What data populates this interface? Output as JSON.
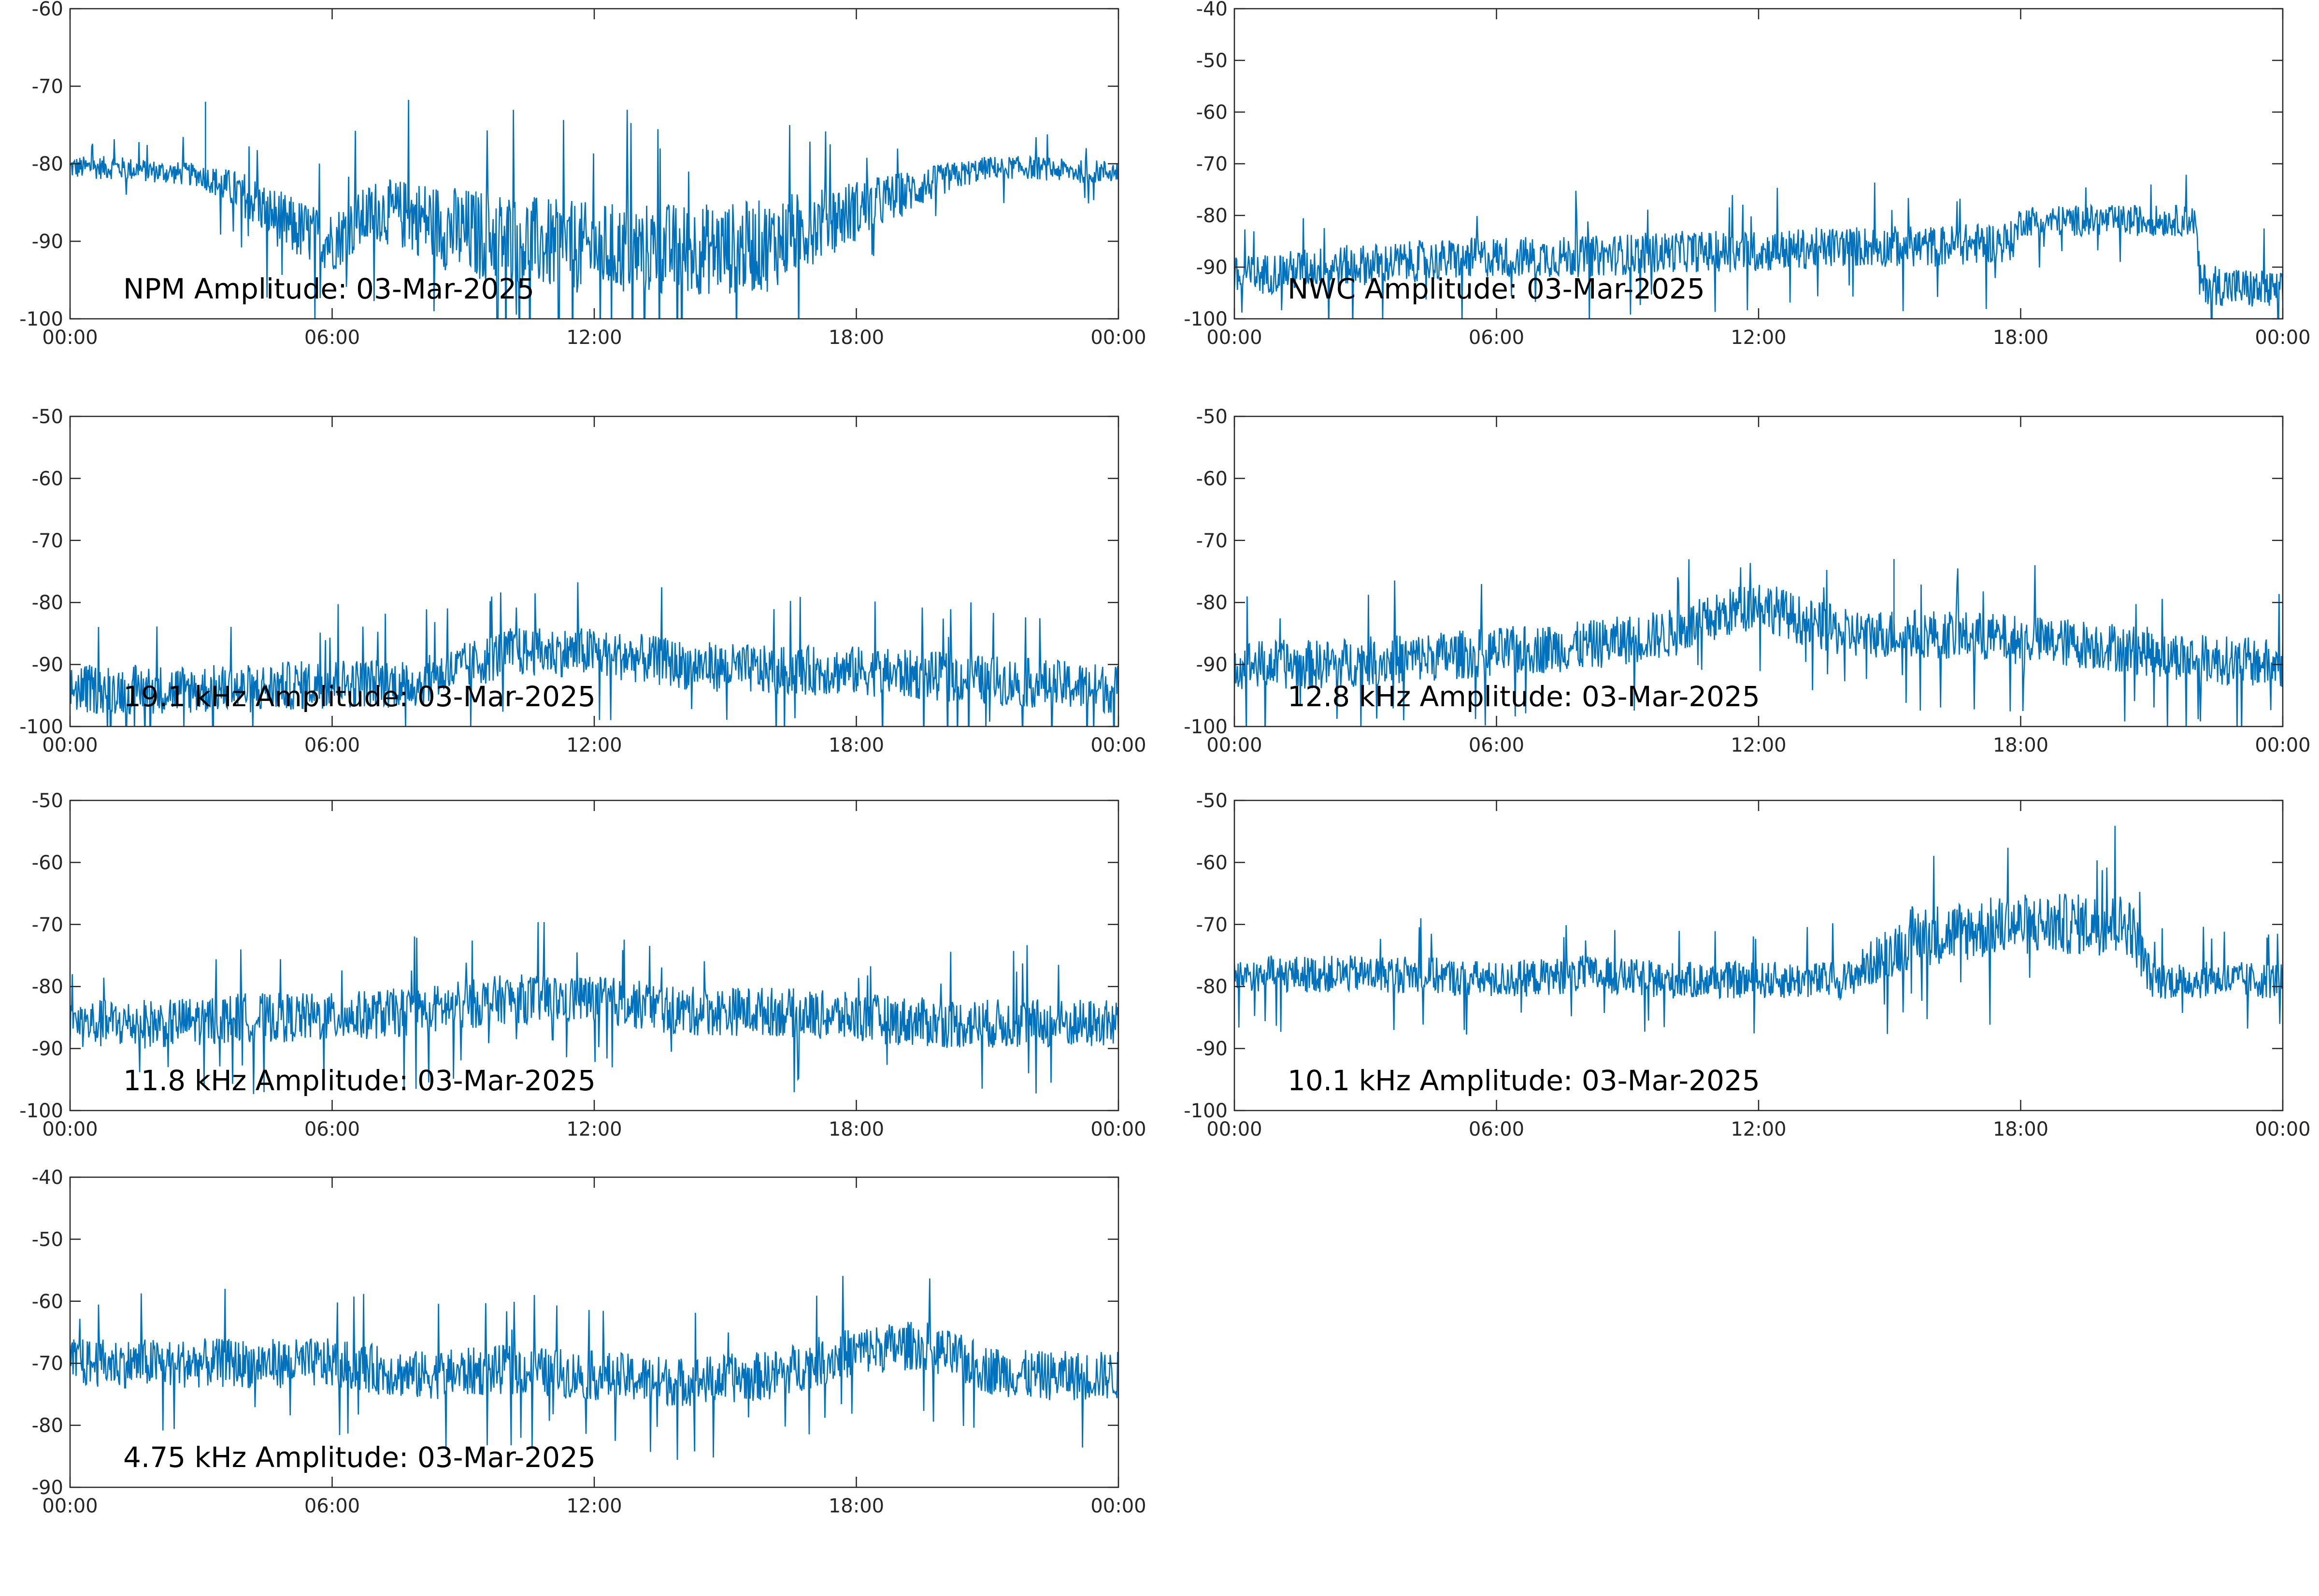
{
  "colors": {
    "signal": "#0072BD",
    "axis": "#262626",
    "background": "#ffffff"
  },
  "chart_data": [
    {
      "type": "line",
      "title": "NPM Amplitude: 03-Mar-2025",
      "xlabel": "",
      "ylabel": "",
      "xticks": [
        "00:00",
        "06:00",
        "12:00",
        "18:00",
        "00:00"
      ],
      "xlim_hours": [
        0,
        24
      ],
      "ylim": [
        -100,
        -60
      ],
      "yticks": [
        -60,
        -70,
        -80,
        -90,
        -100
      ],
      "grid": false,
      "series": [
        {
          "x_hours": [
            0,
            1,
            2,
            3,
            4,
            5,
            6,
            7,
            8,
            9,
            10,
            11,
            12,
            13,
            14,
            15,
            16,
            17,
            18,
            19,
            20,
            21,
            22,
            23,
            24
          ],
          "center": [
            -80.5,
            -80.5,
            -81,
            -81.5,
            -84,
            -88,
            -90,
            -86,
            -87,
            -89,
            -89.5,
            -90.5,
            -91,
            -91,
            -91,
            -91,
            -90.5,
            -88,
            -86,
            -84,
            -82,
            -80.5,
            -80.5,
            -81,
            -81
          ],
          "spread": [
            1.5,
            1.5,
            1.5,
            1.5,
            3,
            4,
            4,
            4,
            5,
            6,
            6,
            6,
            6,
            6,
            6,
            6,
            6,
            5,
            4,
            3,
            2,
            1.5,
            1.5,
            1.5,
            1.5
          ],
          "spikes": [
            {
              "x_hours": 3.1,
              "y": -72
            }
          ]
        }
      ]
    },
    {
      "type": "line",
      "title": "NWC Amplitude: 03-Mar-2025",
      "xlabel": "",
      "ylabel": "",
      "xticks": [
        "00:00",
        "06:00",
        "12:00",
        "18:00",
        "00:00"
      ],
      "xlim_hours": [
        0,
        24
      ],
      "ylim": [
        -100,
        -40
      ],
      "yticks": [
        -40,
        -50,
        -60,
        -70,
        -80,
        -90,
        -100
      ],
      "grid": false,
      "series": [
        {
          "x_hours": [
            0,
            2,
            4,
            6,
            8,
            10,
            12,
            14,
            16,
            17.8,
            18,
            20,
            22,
            22.1,
            24
          ],
          "center": [
            -92,
            -90,
            -89,
            -88,
            -88,
            -87,
            -87,
            -86,
            -86,
            -85,
            -81,
            -81,
            -81,
            -93,
            -95
          ],
          "spread": [
            4,
            4,
            4,
            4,
            4,
            4,
            4,
            4,
            4,
            4,
            3,
            3,
            3,
            4,
            4
          ],
          "spikes": []
        }
      ]
    },
    {
      "type": "line",
      "title": "19.1 kHz Amplitude: 03-Mar-2025",
      "xlabel": "",
      "ylabel": "",
      "xticks": [
        "00:00",
        "06:00",
        "12:00",
        "18:00",
        "00:00"
      ],
      "xlim_hours": [
        0,
        24
      ],
      "ylim": [
        -100,
        -50
      ],
      "yticks": [
        -50,
        -60,
        -70,
        -80,
        -90,
        -100
      ],
      "grid": false,
      "series": [
        {
          "x_hours": [
            0,
            2,
            4,
            6,
            8,
            10,
            12,
            14,
            16,
            18,
            20,
            22,
            24
          ],
          "center": [
            -94,
            -94,
            -94,
            -93,
            -93,
            -88,
            -88,
            -90,
            -91,
            -91,
            -92,
            -93,
            -94
          ],
          "spread": [
            4,
            4,
            4,
            4,
            4,
            4,
            4,
            4,
            4,
            4,
            4,
            4,
            4
          ],
          "spikes": []
        }
      ]
    },
    {
      "type": "line",
      "title": "12.8 kHz Amplitude: 03-Mar-2025",
      "xlabel": "",
      "ylabel": "",
      "xticks": [
        "00:00",
        "06:00",
        "12:00",
        "18:00",
        "00:00"
      ],
      "xlim_hours": [
        0,
        24
      ],
      "ylim": [
        -100,
        -50
      ],
      "yticks": [
        -50,
        -60,
        -70,
        -80,
        -90,
        -100
      ],
      "grid": false,
      "series": [
        {
          "x_hours": [
            0,
            2,
            4,
            6,
            8,
            10,
            12,
            13,
            14,
            16,
            18,
            20,
            22,
            24
          ],
          "center": [
            -90,
            -90,
            -89,
            -88,
            -87,
            -85,
            -80,
            -83,
            -85,
            -85,
            -86,
            -87,
            -89,
            -90
          ],
          "spread": [
            4,
            4,
            4,
            4,
            4,
            4,
            4,
            4,
            4,
            4,
            4,
            4,
            4,
            4
          ],
          "spikes": [
            {
              "x_hours": 15.1,
              "y": -73
            }
          ]
        }
      ]
    },
    {
      "type": "line",
      "title": "11.8 kHz Amplitude: 03-Mar-2025",
      "xlabel": "",
      "ylabel": "",
      "xticks": [
        "00:00",
        "06:00",
        "12:00",
        "18:00",
        "00:00"
      ],
      "xlim_hours": [
        0,
        24
      ],
      "ylim": [
        -100,
        -50
      ],
      "yticks": [
        -50,
        -60,
        -70,
        -80,
        -90,
        -100
      ],
      "grid": false,
      "series": [
        {
          "x_hours": [
            0,
            2,
            4,
            6,
            8,
            10,
            12,
            14,
            16,
            18,
            20,
            22,
            24
          ],
          "center": [
            -86,
            -86,
            -85,
            -85,
            -84,
            -82,
            -82,
            -84,
            -84,
            -85,
            -86,
            -86,
            -86
          ],
          "spread": [
            4,
            4,
            4,
            4,
            4,
            4,
            4,
            4,
            4,
            4,
            4,
            4,
            4
          ],
          "spikes": []
        }
      ]
    },
    {
      "type": "line",
      "title": "10.1 kHz Amplitude: 03-Mar-2025",
      "xlabel": "",
      "ylabel": "",
      "xticks": [
        "00:00",
        "06:00",
        "12:00",
        "18:00",
        "00:00"
      ],
      "xlim_hours": [
        0,
        24
      ],
      "ylim": [
        -100,
        -50
      ],
      "yticks": [
        -50,
        -60,
        -70,
        -80,
        -90,
        -100
      ],
      "grid": false,
      "series": [
        {
          "x_hours": [
            0,
            2,
            4,
            6,
            8,
            10,
            12,
            14,
            15.5,
            18,
            20.5,
            21,
            24
          ],
          "center": [
            -78,
            -78,
            -78,
            -79,
            -78,
            -79,
            -79,
            -79,
            -72,
            -70,
            -70,
            -79,
            -79
          ],
          "spread": [
            3,
            3,
            3,
            3,
            3,
            3,
            3,
            3,
            5,
            5,
            5,
            3,
            3
          ],
          "spikes": []
        }
      ]
    },
    {
      "type": "line",
      "title": "4.75 kHz Amplitude: 03-Mar-2025",
      "xlabel": "",
      "ylabel": "",
      "xticks": [
        "00:00",
        "06:00",
        "12:00",
        "18:00",
        "00:00"
      ],
      "xlim_hours": [
        0,
        24
      ],
      "ylim": [
        -90,
        -40
      ],
      "yticks": [
        -40,
        -50,
        -60,
        -70,
        -80,
        -90
      ],
      "grid": false,
      "series": [
        {
          "x_hours": [
            0,
            2,
            4,
            6,
            8,
            10,
            12,
            14,
            16,
            18,
            19.5,
            21,
            22,
            24
          ],
          "center": [
            -70,
            -70,
            -70,
            -70,
            -72,
            -71,
            -72,
            -73,
            -72,
            -68,
            -67,
            -71,
            -72,
            -72
          ],
          "spread": [
            4,
            4,
            4,
            4,
            4,
            4,
            4,
            4,
            4,
            4,
            4,
            4,
            4,
            4
          ],
          "spikes": []
        }
      ]
    }
  ]
}
